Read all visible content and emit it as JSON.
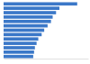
{
  "chart_data": {
    "type": "bar",
    "orientation": "horizontal",
    "categories": [
      null,
      null,
      null,
      null,
      null,
      null,
      null,
      null,
      null,
      null,
      null,
      null,
      null
    ],
    "values": [
      87,
      66,
      62,
      58,
      56,
      52,
      48,
      45,
      41,
      39,
      37,
      36,
      35
    ],
    "color": "#3b78c8",
    "xlim": [
      0,
      100
    ],
    "grid": false,
    "tick_labels": false
  }
}
